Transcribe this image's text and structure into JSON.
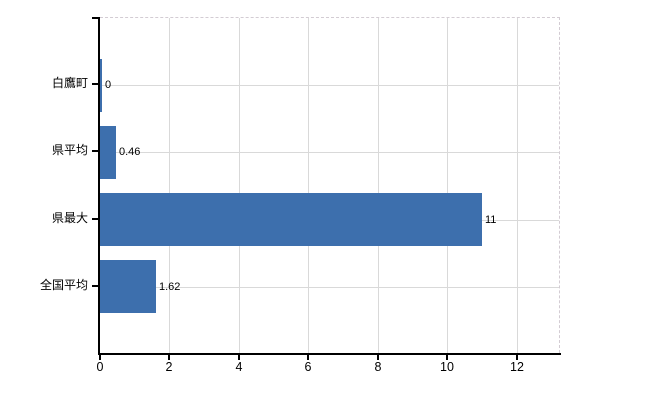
{
  "chart_data": {
    "type": "bar",
    "orientation": "horizontal",
    "title": "",
    "xlabel": "",
    "ylabel": "",
    "categories": [
      "白鷹町",
      "県平均",
      "県最大",
      "全国平均"
    ],
    "values": [
      0,
      0.46,
      11,
      1.62
    ],
    "value_labels": [
      "0",
      "0.46",
      "11",
      "1.62"
    ],
    "x_ticks": [
      0,
      2,
      4,
      6,
      8,
      10,
      12
    ],
    "xlim": [
      0,
      13.24
    ],
    "grid": true,
    "legend": "none",
    "bar_color": "#3d6fad",
    "axis_color": "#000000",
    "gridline_color": "#d9d9d9",
    "plot_border_color": "#d3ccd3",
    "text_color": "#000000",
    "background_color": "#ffffff"
  }
}
